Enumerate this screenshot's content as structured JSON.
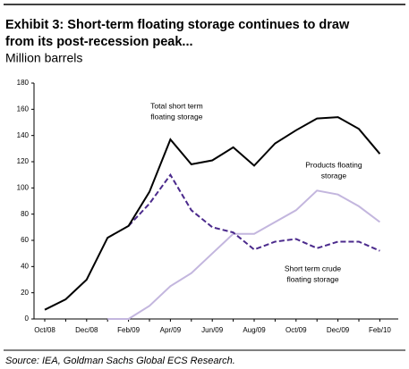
{
  "chart_data": {
    "type": "line",
    "title": [
      "Exhibit 3: Short-term floating storage continues to draw",
      "from its post-recession peak..."
    ],
    "subtitle": "Million barrels",
    "source": "Source: IEA, Goldman Sachs Global ECS Research.",
    "categories": [
      "Oct/08",
      null,
      "Dec/08",
      null,
      "Feb/09",
      null,
      "Apr/09",
      null,
      "Jun/09",
      null,
      "Aug/09",
      null,
      "Oct/09",
      null,
      "Dec/09",
      null,
      "Feb/10"
    ],
    "series": [
      {
        "color": "#000000",
        "dash": false,
        "values": [
          7,
          15,
          30,
          62,
          71,
          97,
          137,
          118,
          121,
          131,
          117,
          134,
          144,
          153,
          154,
          145,
          126
        ]
      },
      {
        "color": "#4b2a8c",
        "dash": true,
        "values": [
          null,
          null,
          null,
          null,
          71,
          88,
          110,
          83,
          70,
          66,
          53,
          59,
          61,
          54,
          59,
          59,
          52
        ]
      },
      {
        "color": "#c3b6de",
        "dash": false,
        "values": [
          null,
          null,
          null,
          0,
          0,
          10,
          25,
          35,
          50,
          65,
          65,
          74,
          83,
          98,
          95,
          86,
          74
        ]
      }
    ],
    "annotations": [
      {
        "lines": [
          "Total short term",
          "floating storage"
        ],
        "at": 6.3,
        "value": 162
      },
      {
        "lines": [
          "Products floating",
          "storage"
        ],
        "at": 13.8,
        "value": 117
      },
      {
        "lines": [
          "Short term crude",
          "floating storage"
        ],
        "at": 12.8,
        "value": 38
      }
    ],
    "ylim": [
      0,
      180
    ],
    "yticks": [
      0,
      20,
      40,
      60,
      80,
      100,
      120,
      140,
      160,
      180
    ],
    "grid": false
  }
}
